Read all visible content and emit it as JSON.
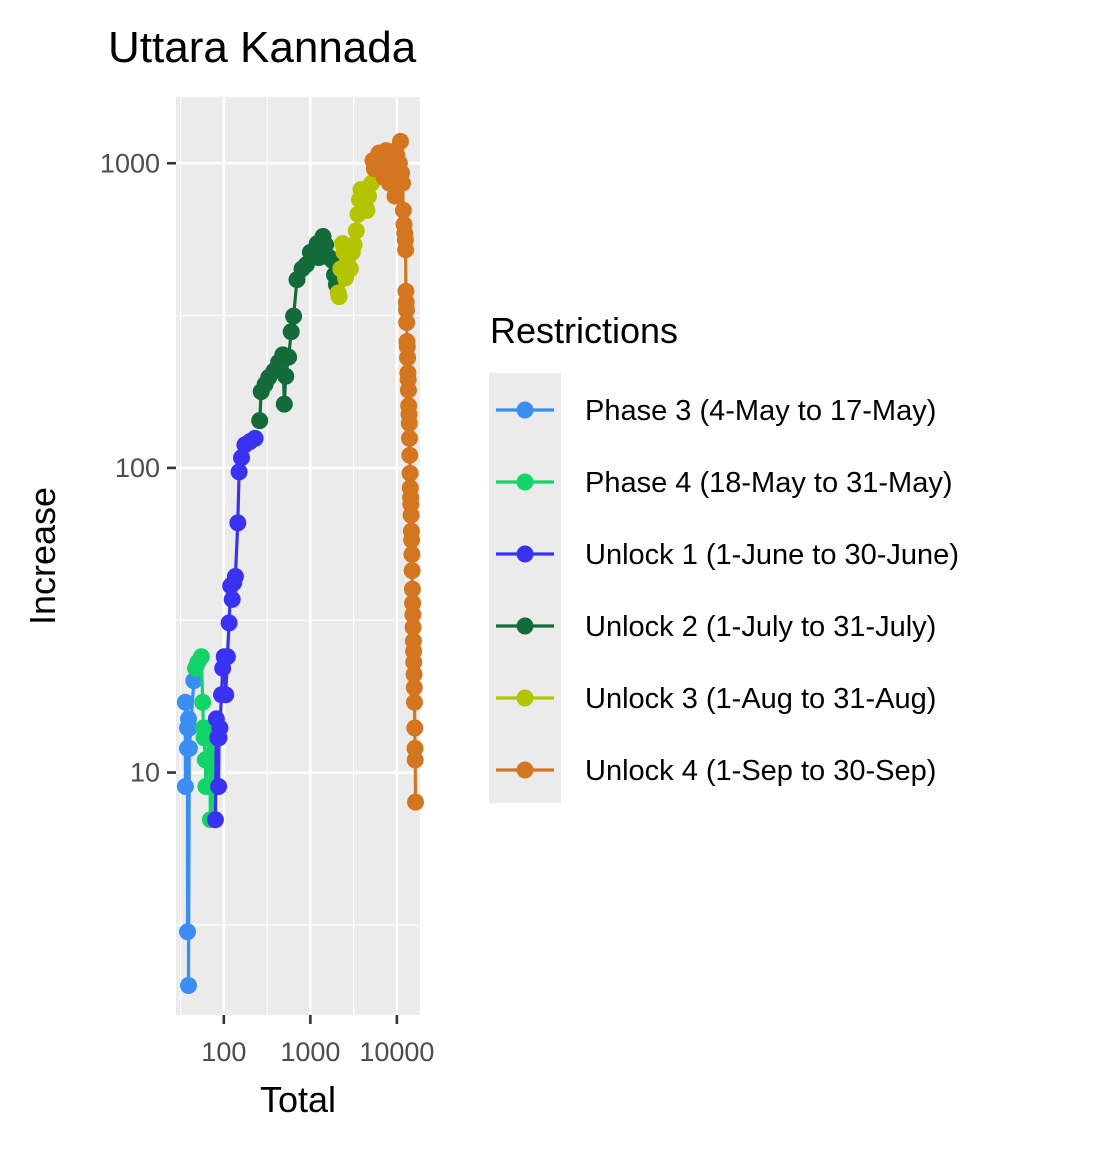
{
  "chart_data": {
    "type": "line",
    "title": "Uttara Kannada",
    "xlabel": "Total",
    "ylabel": "Increase",
    "x_scale": "log10",
    "y_scale": "log10",
    "xlim": [
      28,
      18500
    ],
    "ylim": [
      1.6,
      1650
    ],
    "x_ticks": [
      {
        "value": 100,
        "label": "100"
      },
      {
        "value": 1000,
        "label": "1000"
      },
      {
        "value": 10000,
        "label": "10000"
      }
    ],
    "y_ticks": [
      {
        "value": 10,
        "label": "10"
      },
      {
        "value": 100,
        "label": "100"
      },
      {
        "value": 1000,
        "label": "1000"
      }
    ],
    "grid": true,
    "panel_background": "#ebebeb",
    "legend": {
      "title": "Restrictions",
      "position": "right"
    },
    "series": [
      {
        "name": "Phase 3 (4-May to 17-May)",
        "color": "#3a8ef2",
        "points": [
          [
            36,
            17
          ],
          [
            36,
            9
          ],
          [
            38,
            14
          ],
          [
            38,
            12
          ],
          [
            38,
            3
          ],
          [
            39,
            15
          ],
          [
            39,
            2
          ],
          [
            40,
            14
          ],
          [
            40,
            12
          ],
          [
            45,
            20
          ]
        ]
      },
      {
        "name": "Phase 4 (18-May to 31-May)",
        "color": "#12d46a",
        "points": [
          [
            47,
            22
          ],
          [
            50,
            23
          ],
          [
            55,
            24
          ],
          [
            57,
            17
          ],
          [
            58,
            14
          ],
          [
            59,
            13
          ],
          [
            61,
            11
          ],
          [
            62,
            9
          ],
          [
            68,
            14
          ],
          [
            70,
            7
          ],
          [
            74,
            14
          ],
          [
            77,
            7
          ]
        ]
      },
      {
        "name": "Unlock 1 (1-June to 30-June)",
        "color": "#3a32f2",
        "points": [
          [
            80,
            7
          ],
          [
            82,
            15
          ],
          [
            85,
            13
          ],
          [
            87,
            9
          ],
          [
            88,
            13
          ],
          [
            90,
            14
          ],
          [
            94,
            18
          ],
          [
            97,
            22
          ],
          [
            101,
            24
          ],
          [
            105,
            18
          ],
          [
            110,
            24
          ],
          [
            115,
            31
          ],
          [
            120,
            41
          ],
          [
            125,
            37
          ],
          [
            130,
            42
          ],
          [
            136,
            44
          ],
          [
            145,
            66
          ],
          [
            150,
            97
          ],
          [
            160,
            108
          ],
          [
            175,
            119
          ],
          [
            200,
            122
          ],
          [
            230,
            125
          ]
        ]
      },
      {
        "name": "Unlock 2 (1-July to 31-July)",
        "color": "#146b3a",
        "points": [
          [
            260,
            143
          ],
          [
            270,
            178
          ],
          [
            300,
            188
          ],
          [
            330,
            198
          ],
          [
            380,
            208
          ],
          [
            430,
            222
          ],
          [
            480,
            235
          ],
          [
            500,
            162
          ],
          [
            520,
            200
          ],
          [
            560,
            231
          ],
          [
            600,
            280
          ],
          [
            640,
            315
          ],
          [
            700,
            415
          ],
          [
            800,
            450
          ],
          [
            900,
            465
          ],
          [
            1000,
            510
          ],
          [
            1200,
            545
          ],
          [
            1250,
            490
          ],
          [
            1400,
            575
          ],
          [
            1500,
            540
          ],
          [
            1650,
            490
          ],
          [
            1800,
            480
          ],
          [
            1900,
            430
          ],
          [
            2000,
            400
          ]
        ]
      },
      {
        "name": "Unlock 3 (1-Aug to 31-Aug)",
        "color": "#b4c400",
        "points": [
          [
            2100,
            375
          ],
          [
            2150,
            365
          ],
          [
            2250,
            450
          ],
          [
            2350,
            545
          ],
          [
            2450,
            510
          ],
          [
            2550,
            420
          ],
          [
            2700,
            485
          ],
          [
            2900,
            450
          ],
          [
            3050,
            510
          ],
          [
            3200,
            540
          ],
          [
            3400,
            600
          ],
          [
            3550,
            680
          ],
          [
            3700,
            760
          ],
          [
            3850,
            820
          ],
          [
            4100,
            800
          ],
          [
            4300,
            730
          ],
          [
            4500,
            700
          ],
          [
            4700,
            780
          ],
          [
            5100,
            860
          ]
        ]
      },
      {
        "name": "Unlock 4 (1-Sep to 30-Sep)",
        "color": "#d4761f",
        "points": [
          [
            5300,
            1020
          ],
          [
            5500,
            960
          ],
          [
            6000,
            960
          ],
          [
            6200,
            1080
          ],
          [
            6700,
            980
          ],
          [
            7100,
            900
          ],
          [
            7500,
            1100
          ],
          [
            7800,
            990
          ],
          [
            8200,
            860
          ],
          [
            8500,
            900
          ],
          [
            8800,
            940
          ],
          [
            9100,
            1020
          ],
          [
            9300,
            870
          ],
          [
            9500,
            780
          ],
          [
            9700,
            1100
          ],
          [
            10000,
            1060
          ],
          [
            10300,
            970
          ],
          [
            10700,
            1000
          ],
          [
            11000,
            1180
          ],
          [
            11300,
            930
          ],
          [
            11600,
            860
          ],
          [
            11900,
            700
          ],
          [
            12100,
            630
          ],
          [
            12300,
            590
          ],
          [
            12500,
            560
          ],
          [
            12600,
            520
          ],
          [
            12700,
            380
          ],
          [
            12800,
            350
          ],
          [
            12900,
            330
          ],
          [
            13000,
            300
          ],
          [
            13100,
            260
          ],
          [
            13200,
            250
          ],
          [
            13300,
            230
          ],
          [
            13400,
            205
          ],
          [
            13500,
            195
          ],
          [
            13600,
            180
          ],
          [
            13700,
            160
          ],
          [
            13800,
            150
          ],
          [
            13900,
            140
          ],
          [
            14000,
            125
          ],
          [
            14100,
            110
          ],
          [
            14200,
            96
          ],
          [
            14300,
            86
          ],
          [
            14400,
            80
          ],
          [
            14500,
            76
          ],
          [
            14600,
            70
          ],
          [
            14700,
            62
          ],
          [
            14800,
            58
          ],
          [
            14900,
            52
          ],
          [
            15000,
            46
          ],
          [
            15100,
            40
          ],
          [
            15200,
            36
          ],
          [
            15300,
            33
          ],
          [
            15400,
            30
          ],
          [
            15500,
            27
          ],
          [
            15600,
            25
          ],
          [
            15700,
            23
          ],
          [
            15800,
            21
          ],
          [
            15900,
            19
          ],
          [
            16000,
            17
          ],
          [
            16100,
            14
          ],
          [
            16200,
            12
          ],
          [
            16300,
            11
          ],
          [
            16400,
            8
          ]
        ]
      }
    ]
  }
}
